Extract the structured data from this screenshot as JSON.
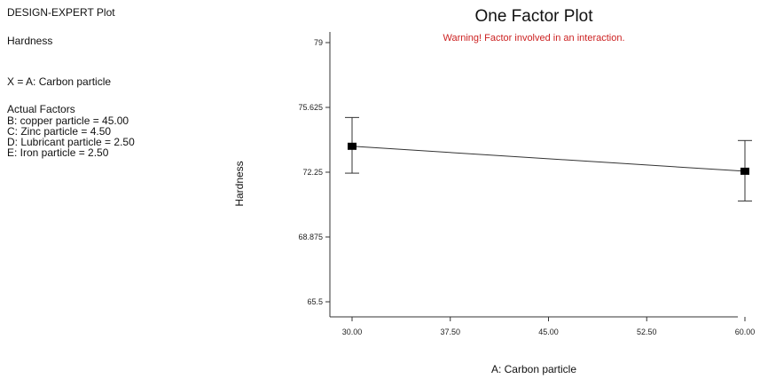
{
  "side_panel": {
    "program": "DESIGN-EXPERT Plot",
    "response": "Hardness",
    "x_factor": "X = A: Carbon particle",
    "actual_factors_title": "Actual Factors",
    "actual_factors": [
      "B: copper particle = 45.00",
      "C: Zinc particle = 4.50",
      "D: Lubricant particle = 2.50",
      "E: Iron particle = 2.50"
    ]
  },
  "chart_data": {
    "type": "line",
    "title": "One Factor Plot",
    "annotation": "Warning! Factor involved in an interaction.",
    "xlabel": "A: Carbon particle",
    "ylabel": "Hardness",
    "xlim": [
      30,
      60
    ],
    "ylim": [
      65.5,
      79
    ],
    "x_ticks": [
      30,
      37.5,
      45,
      52.5,
      60
    ],
    "x_tick_labels": [
      "30.00",
      "37.50",
      "45.00",
      "52.50",
      "60.00"
    ],
    "y_ticks": [
      65.5,
      68.875,
      72.25,
      75.625,
      79
    ],
    "y_tick_labels": [
      "65.5",
      "68.875",
      "72.25",
      "75.625",
      "79"
    ],
    "series": [
      {
        "x": [
          30,
          60
        ],
        "y": [
          73.6,
          72.3
        ],
        "lower": [
          72.2,
          70.75
        ],
        "upper": [
          75.1,
          73.9
        ]
      }
    ],
    "colors": {
      "line": "#333333",
      "marker": "#000000",
      "annotation": "#cc2222"
    }
  }
}
